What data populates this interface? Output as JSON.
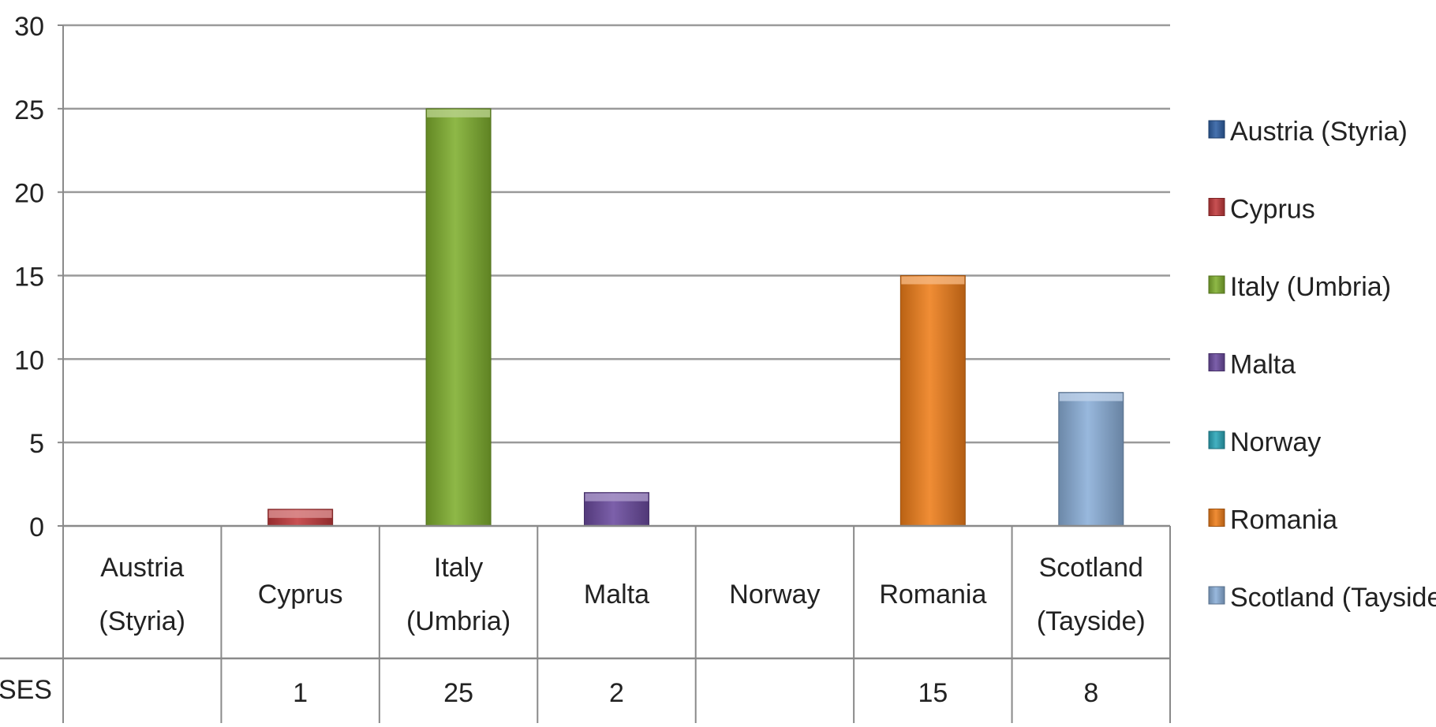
{
  "chart_data": {
    "type": "bar",
    "categories": [
      {
        "line1": "Austria",
        "line2": "(Styria)"
      },
      {
        "line1": "Cyprus",
        "line2": ""
      },
      {
        "line1": "Italy",
        "line2": "(Umbria)"
      },
      {
        "line1": "Malta",
        "line2": ""
      },
      {
        "line1": "Norway",
        "line2": ""
      },
      {
        "line1": "Romania",
        "line2": ""
      },
      {
        "line1": "Scotland",
        "line2": "(Tayside)"
      }
    ],
    "values": [
      null,
      1,
      25,
      2,
      null,
      15,
      8
    ],
    "value_labels": [
      "",
      "1",
      "25",
      "2",
      "",
      "15",
      "8"
    ],
    "table_row_label": "IRSES",
    "ylim": [
      0,
      30
    ],
    "yticks": [
      "0",
      "5",
      "10",
      "15",
      "20",
      "25",
      "30"
    ],
    "grid": true,
    "legend_position": "right",
    "legend": [
      "Austria (Styria)",
      "Cyprus",
      "Italy (Umbria)",
      "Malta",
      "Norway",
      "Romania",
      "Scotland (Tayside)"
    ],
    "colors": [
      "#2e5fa3",
      "#c0393b",
      "#7fae2e",
      "#6a4a9e",
      "#2aa6b8",
      "#ee7d1a",
      "#8aaed8"
    ],
    "title": "",
    "xlabel": "",
    "ylabel": ""
  }
}
